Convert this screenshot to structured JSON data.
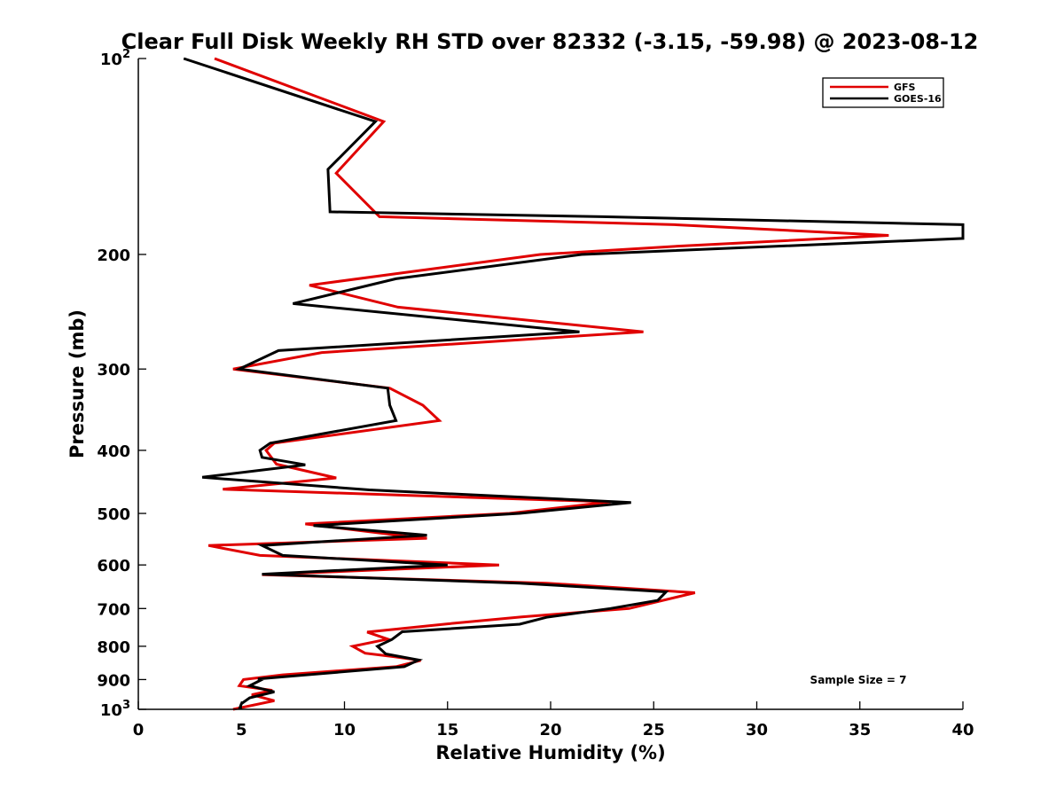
{
  "chart_data": {
    "type": "line",
    "title": "Clear Full Disk Weekly RH STD over 82332 (-3.15, -59.98) @ 2023-08-12",
    "xlabel": "Relative Humidity (%)",
    "ylabel": "Pressure (mb)",
    "xlim": [
      0,
      40
    ],
    "ylim": [
      100,
      1000
    ],
    "y_scale": "log",
    "y_reversed": true,
    "x_ticks": [
      0,
      5,
      10,
      15,
      20,
      25,
      30,
      35,
      40
    ],
    "y_ticks": [
      {
        "value": 100,
        "base": "10",
        "exp": "2"
      },
      {
        "value": 200,
        "label": "200"
      },
      {
        "value": 300,
        "label": "300"
      },
      {
        "value": 400,
        "label": "400"
      },
      {
        "value": 500,
        "label": "500"
      },
      {
        "value": 600,
        "label": "600"
      },
      {
        "value": 700,
        "label": "700"
      },
      {
        "value": 800,
        "label": "800"
      },
      {
        "value": 900,
        "label": "900"
      },
      {
        "value": 1000,
        "base": "10",
        "exp": "3"
      }
    ],
    "grid": false,
    "legend_position": "top-right",
    "annotation": "Sample Size = 7",
    "series": [
      {
        "name": "GFS",
        "color": "#e00000",
        "points": [
          [
            3.7,
            100
          ],
          [
            11.9,
            125
          ],
          [
            9.6,
            150
          ],
          [
            11.7,
            175
          ],
          [
            26.0,
            180
          ],
          [
            36.4,
            187
          ],
          [
            26.5,
            194
          ],
          [
            19.5,
            200
          ],
          [
            8.3,
            223
          ],
          [
            12.6,
            241
          ],
          [
            24.5,
            263
          ],
          [
            8.9,
            283
          ],
          [
            4.6,
            300
          ],
          [
            12.2,
            321
          ],
          [
            13.8,
            341
          ],
          [
            14.6,
            360
          ],
          [
            6.6,
            390
          ],
          [
            6.2,
            400
          ],
          [
            6.7,
            420
          ],
          [
            9.6,
            441
          ],
          [
            4.1,
            459
          ],
          [
            13.0,
            469
          ],
          [
            22.9,
            480
          ],
          [
            18.0,
            500
          ],
          [
            8.1,
            519
          ],
          [
            12.6,
            540
          ],
          [
            14.0,
            546
          ],
          [
            3.4,
            560
          ],
          [
            5.9,
            580
          ],
          [
            17.5,
            600
          ],
          [
            6.0,
            621
          ],
          [
            19.8,
            640
          ],
          [
            27.0,
            662
          ],
          [
            23.8,
            700
          ],
          [
            18.6,
            721
          ],
          [
            15.0,
            739
          ],
          [
            11.1,
            761
          ],
          [
            12.1,
            780
          ],
          [
            10.4,
            800
          ],
          [
            11.0,
            820
          ],
          [
            12.4,
            830
          ],
          [
            13.7,
            841
          ],
          [
            12.5,
            860
          ],
          [
            7.0,
            885
          ],
          [
            5.1,
            900
          ],
          [
            4.9,
            920
          ],
          [
            6.5,
            935
          ],
          [
            5.5,
            950
          ],
          [
            6.6,
            970
          ],
          [
            4.6,
            1000
          ]
        ]
      },
      {
        "name": "GOES-16",
        "color": "#000000",
        "points": [
          [
            2.2,
            100
          ],
          [
            11.5,
            125
          ],
          [
            9.2,
            148
          ],
          [
            9.3,
            172
          ],
          [
            22.5,
            175
          ],
          [
            40.0,
            180
          ],
          [
            40.0,
            189
          ],
          [
            21.5,
            200
          ],
          [
            12.5,
            218
          ],
          [
            7.5,
            238
          ],
          [
            21.4,
            263
          ],
          [
            6.8,
            281
          ],
          [
            4.9,
            300
          ],
          [
            12.1,
            321
          ],
          [
            12.2,
            341
          ],
          [
            12.5,
            360
          ],
          [
            6.4,
            390
          ],
          [
            5.9,
            400
          ],
          [
            6.0,
            410
          ],
          [
            8.1,
            421
          ],
          [
            3.1,
            440
          ],
          [
            11.2,
            460
          ],
          [
            23.9,
            481
          ],
          [
            18.5,
            500
          ],
          [
            8.5,
            522
          ],
          [
            14.0,
            540
          ],
          [
            6.0,
            560
          ],
          [
            7.0,
            580
          ],
          [
            15.0,
            600
          ],
          [
            6.0,
            620
          ],
          [
            18.5,
            640
          ],
          [
            25.6,
            660
          ],
          [
            25.2,
            680
          ],
          [
            22.9,
            700
          ],
          [
            19.8,
            722
          ],
          [
            18.5,
            740
          ],
          [
            12.8,
            760
          ],
          [
            12.3,
            781
          ],
          [
            11.6,
            800
          ],
          [
            12.0,
            822
          ],
          [
            13.6,
            840
          ],
          [
            12.9,
            860
          ],
          [
            5.8,
            898
          ],
          [
            6.0,
            900
          ],
          [
            5.4,
            920
          ],
          [
            6.6,
            940
          ],
          [
            5.4,
            960
          ],
          [
            5.0,
            980
          ],
          [
            4.9,
            1000
          ]
        ]
      }
    ]
  }
}
